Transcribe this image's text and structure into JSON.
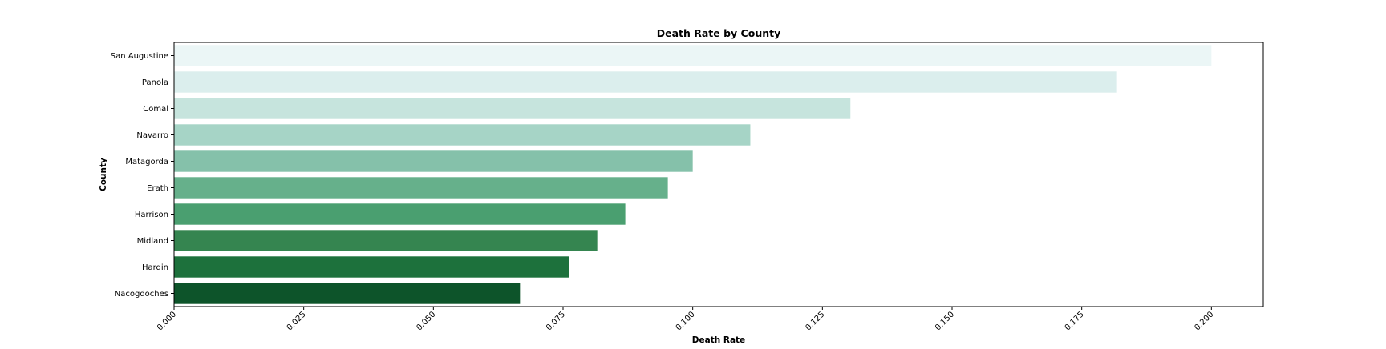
{
  "chart_data": {
    "type": "bar",
    "orientation": "horizontal",
    "title": "Death Rate by County",
    "xlabel": "Death Rate",
    "ylabel": "County",
    "categories": [
      "San Augustine",
      "Panola",
      "Comal",
      "Navarro",
      "Matagorda",
      "Erath",
      "Harrison",
      "Midland",
      "Hardin",
      "Nacogdoches"
    ],
    "values": [
      0.2,
      0.1818,
      0.1304,
      0.1111,
      0.1,
      0.0952,
      0.087,
      0.0816,
      0.0762,
      0.0667
    ],
    "colors": [
      "#ebf6f6",
      "#dbeeed",
      "#c6e4dd",
      "#a6d4c6",
      "#85c1aa",
      "#66b08b",
      "#4a9f70",
      "#358550",
      "#1d713c",
      "#0d542a"
    ],
    "xlim": [
      0,
      0.21
    ],
    "xticks": [
      "0.000",
      "0.025",
      "0.050",
      "0.075",
      "0.100",
      "0.125",
      "0.150",
      "0.175",
      "0.200"
    ],
    "xtick_values": [
      0,
      0.025,
      0.05,
      0.075,
      0.1,
      0.125,
      0.15,
      0.175,
      0.2
    ],
    "grid": false,
    "legend": "none"
  }
}
